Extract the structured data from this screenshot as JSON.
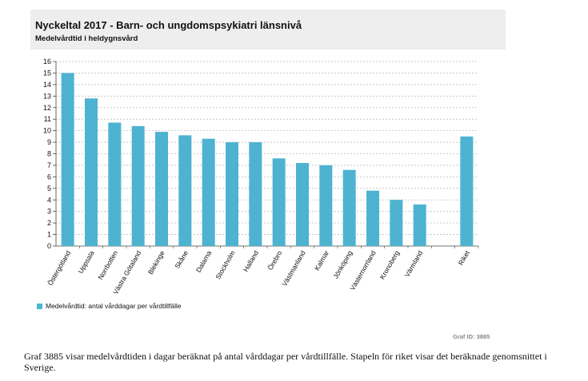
{
  "header": {
    "title": "Nyckeltal 2017 - Barn- och ungdomspsykiatri länsnivå",
    "subtitle": "Medelvårdtid i heldygnsvård"
  },
  "legend": {
    "label": "Medelvårdtid: antal vårddagar per vårdtillfälle"
  },
  "graf_id": "Graf ID: 3885",
  "caption": "Graf 3885 visar medelvårdtiden i dagar beräknat på antal vårddagar per vårdtillfälle. Stapeln för riket visar det beräknade genomsnittet i Sverige.",
  "colors": {
    "bar": "#4db3d1",
    "grid": "#bfbfbf"
  },
  "chart_data": {
    "type": "bar",
    "title": "",
    "xlabel": "",
    "ylabel": "",
    "ylim": [
      0,
      16
    ],
    "yticks": [
      0,
      1,
      2,
      3,
      4,
      5,
      6,
      7,
      8,
      9,
      10,
      11,
      12,
      13,
      14,
      15,
      16
    ],
    "grid": true,
    "legend_position": "bottom-left",
    "categories": [
      "Östergötland",
      "Uppsala",
      "Norrbotten",
      "Västra Götaland",
      "Blekinge",
      "Skåne",
      "Dalarna",
      "Stockholm",
      "Halland",
      "Örebro",
      "Västmanland",
      "Kalmar",
      "Jönköping",
      "Västernorrland",
      "Kronoberg",
      "Värmland",
      "",
      "Riket"
    ],
    "series": [
      {
        "name": "Medelvårdtid: antal vårddagar per vårdtillfälle",
        "values": [
          15.0,
          12.8,
          10.7,
          10.4,
          9.9,
          9.6,
          9.3,
          9.0,
          9.0,
          7.6,
          7.2,
          7.0,
          6.6,
          4.8,
          4.0,
          3.6,
          null,
          9.5
        ]
      }
    ]
  }
}
